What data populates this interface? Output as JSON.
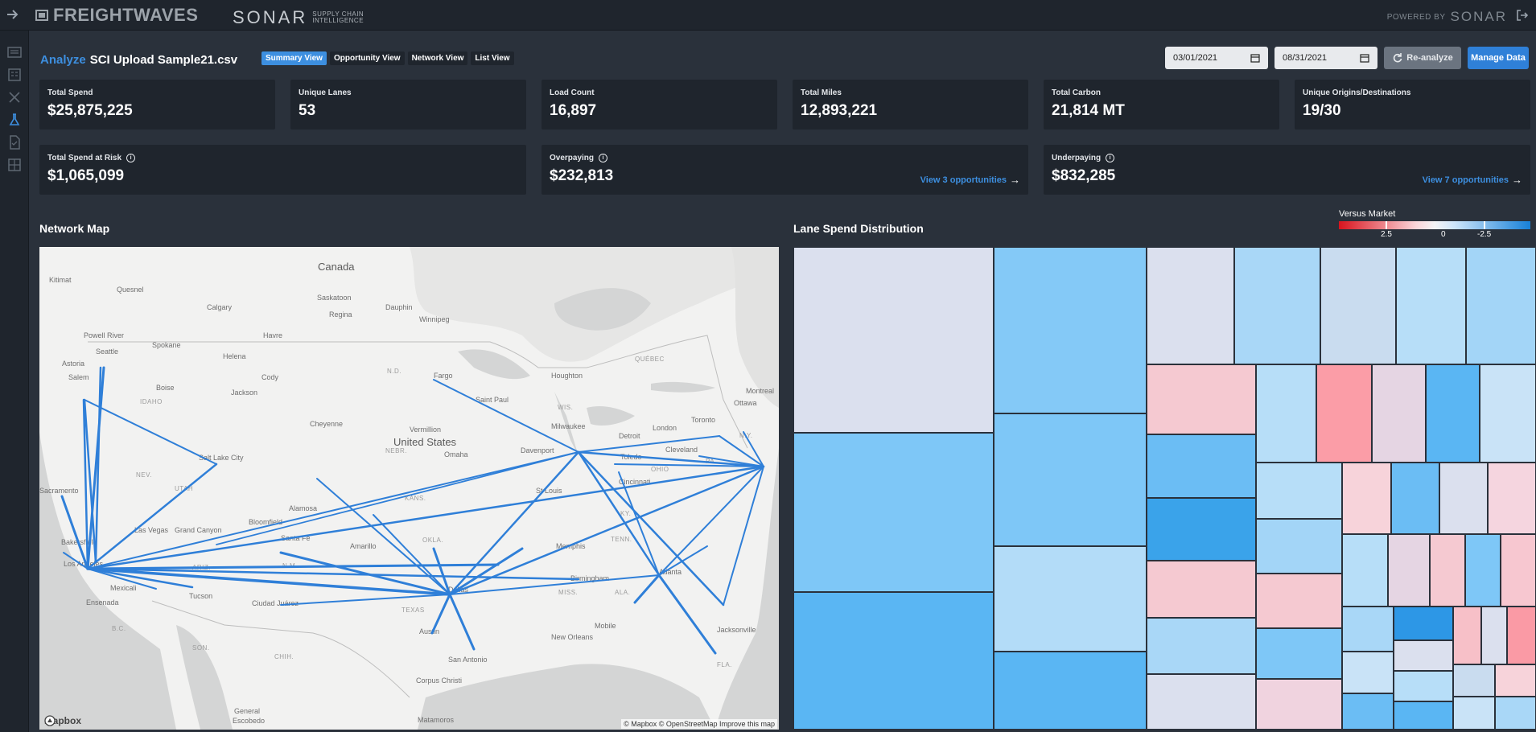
{
  "topbar": {
    "brand": "FREIGHTWAVES",
    "product": "SONAR",
    "product_sub_line1": "SUPPLY CHAIN",
    "product_sub_line2": "INTELLIGENCE",
    "powered_by": "POWERED BY",
    "powered_brand": "SONAR"
  },
  "header": {
    "analyze_label": "Analyze",
    "file_name": "SCI Upload Sample21.csv",
    "tabs": [
      "Summary View",
      "Opportunity View",
      "Network View",
      "List View"
    ],
    "active_tab": "Summary View",
    "start_date": "03/01/2021",
    "end_date": "08/31/2021",
    "reanalyze_label": "Re-analyze",
    "manage_data_label": "Manage Data"
  },
  "kpis": [
    {
      "label": "Total Spend",
      "value": "$25,875,225"
    },
    {
      "label": "Unique Lanes",
      "value": "53"
    },
    {
      "label": "Load Count",
      "value": "16,897"
    },
    {
      "label": "Total Miles",
      "value": "12,893,221"
    },
    {
      "label": "Total Carbon",
      "value": "21,814 MT"
    },
    {
      "label": "Unique Origins/Destinations",
      "value": "19/30"
    }
  ],
  "risk": [
    {
      "label": "Total Spend at Risk",
      "value": "$1,065,099",
      "link": ""
    },
    {
      "label": "Overpaying",
      "value": "$232,813",
      "link": "View 3 opportunities"
    },
    {
      "label": "Underpaying",
      "value": "$832,285",
      "link": "View 7 opportunities"
    }
  ],
  "network_map": {
    "title": "Network Map",
    "country_label": "United States",
    "attribution": "© Mapbox © OpenStreetMap Improve this map",
    "logo": "mapbox",
    "line_color": "#2f7fd8"
  },
  "lane_spend": {
    "title": "Lane Spend Distribution",
    "legend_title": "Versus Market",
    "legend_ticks": [
      "2.5",
      "0",
      "-2.5"
    ],
    "negative_color": "#1780d8",
    "positive_color": "#d8141e"
  }
}
